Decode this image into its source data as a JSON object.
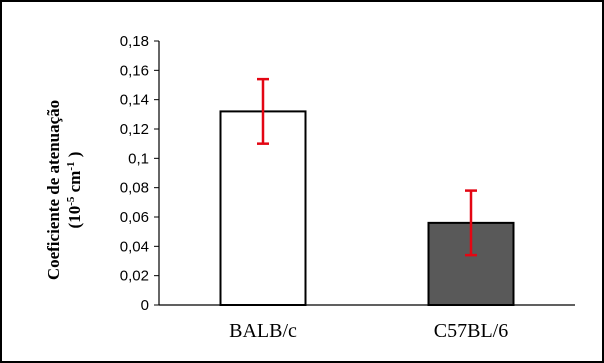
{
  "chart_data": {
    "type": "bar",
    "categories": [
      "BALB/c",
      "C57BL/6"
    ],
    "values": [
      0.132,
      0.056
    ],
    "error": [
      0.022,
      0.022
    ],
    "title": "",
    "xlabel": "",
    "ylabel_line1": "Coeficiente  de atenuação",
    "ylabel_line2_open": "(10",
    "ylabel_line2_sup1": "-5",
    "ylabel_line2_mid": " cm",
    "ylabel_line2_sup2": "-1",
    "ylabel_line2_close": " )",
    "ylim": [
      0,
      0.18
    ],
    "yticks": [
      0,
      0.02,
      0.04,
      0.06,
      0.08,
      0.1,
      0.12,
      0.14,
      0.16,
      0.18
    ],
    "ytick_labels": [
      "0",
      "0,02",
      "0,04",
      "0,06",
      "0,08",
      "0,1",
      "0,12",
      "0,14",
      "0,16",
      "0,18"
    ],
    "grid": false,
    "legend": "none",
    "colors": {
      "bar_fills": [
        "#ffffff",
        "#595959"
      ],
      "bar_stroke": "#000000",
      "error_bar": "#e30613",
      "frame": "#000000"
    }
  }
}
